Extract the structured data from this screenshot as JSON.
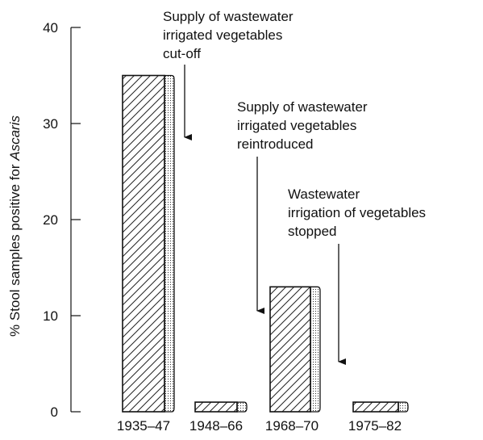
{
  "chart_data": {
    "type": "bar",
    "categories": [
      "1935–47",
      "1948–66",
      "1968–70",
      "1975–82"
    ],
    "values": [
      35,
      1,
      13,
      1
    ],
    "ylabel_prefix": "% Stool samples positive for ",
    "ylabel_italic": "Ascaris",
    "ylim": [
      0,
      40
    ],
    "yticks": [
      "0",
      "10",
      "20",
      "30",
      "40"
    ],
    "grid": false,
    "annotations": [
      {
        "lines": [
          "Supply of wastewater",
          "irrigated vegetables",
          "cut-off"
        ]
      },
      {
        "lines": [
          "Supply of wastewater",
          "irrigated vegetables",
          "reintroduced"
        ]
      },
      {
        "lines": [
          "Wastewater",
          "irrigation of vegetables",
          "stopped"
        ]
      }
    ]
  }
}
